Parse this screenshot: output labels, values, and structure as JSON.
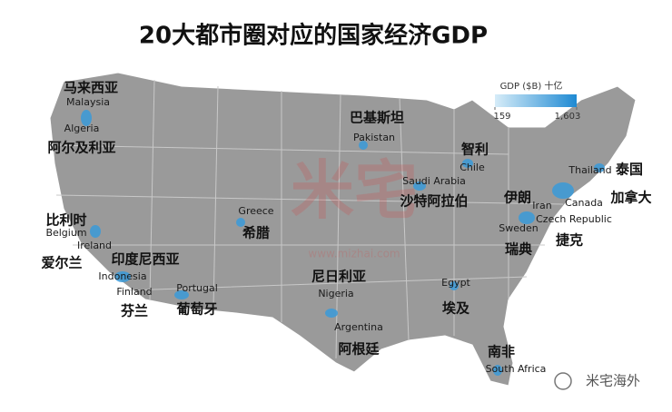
{
  "title": "20大都市圈对应的国家经济GDP",
  "legend": {
    "title": "GDP ($B) 十亿",
    "ticks": [
      159,
      {
        "value": 1603,
        "label": "1,603"
      }
    ]
  },
  "regions": [
    {
      "zh": "马来西亚",
      "en": "Malaysia"
    },
    {
      "zh": "阿尔及利亚",
      "en": "Algeria"
    },
    {
      "zh": "巴基斯坦",
      "en": "Pakistan"
    },
    {
      "zh": "智利",
      "en": "Chile"
    },
    {
      "zh": "沙特阿拉伯",
      "en": "Saudi Arabia"
    },
    {
      "zh": "泰国",
      "en": "Thailand"
    },
    {
      "zh": "伊朗",
      "en": "Iran"
    },
    {
      "zh": "加拿大",
      "en": "Canada"
    },
    {
      "zh": "捷克",
      "en": "Czech Republic"
    },
    {
      "zh": "瑞典",
      "en": "Sweden"
    },
    {
      "zh": "比利时",
      "en": "Belgium"
    },
    {
      "zh": "爱尔兰",
      "en": "Ireland"
    },
    {
      "zh": "印度尼西亚",
      "en": "Indonesia"
    },
    {
      "zh": "芬兰",
      "en": "Finland"
    },
    {
      "zh": "希腊",
      "en": "Greece"
    },
    {
      "zh": "葡萄牙",
      "en": "Portugal"
    },
    {
      "zh": "尼日利亚",
      "en": "Nigeria"
    },
    {
      "zh": "埃及",
      "en": "Egypt"
    },
    {
      "zh": "阿根廷",
      "en": "Argentina"
    },
    {
      "zh": "南非",
      "en": "South Africa"
    }
  ],
  "watermark": {
    "logo": "米宅",
    "url": "www.mizhai.com"
  },
  "badge": "米宅海外"
}
